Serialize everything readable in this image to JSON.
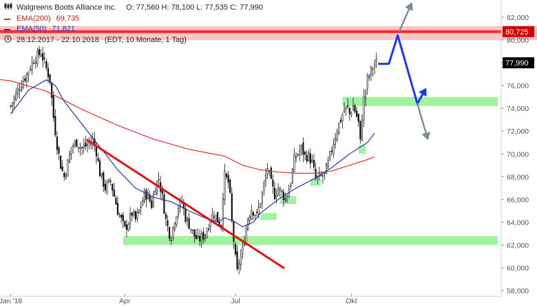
{
  "header": {
    "title": "Walgreens Boots Alliance Inc.",
    "ohlc": "O: 77,560  H: 78,100  L: 77,535  C: 77,990",
    "ema200_label": "EMA(200)",
    "ema200_value": "69,735",
    "ema50_label": "EMA(50)",
    "ema50_value": "71,821",
    "period": "28.12.2017 - 22.10.2018",
    "period_info": "(EDT, 10 Monate, 1 Tag)"
  },
  "colors": {
    "ema200": "#e03030",
    "ema50": "#2233aa",
    "candle": "#111111",
    "trendline": "#e81010",
    "resistance_band": "#ff2a2a",
    "support_zone": "#90f090",
    "projection": "#1a35ff",
    "alt_arrow": "#7a8a96",
    "last_price_bg": "#000000",
    "resistance_label_bg": "#d40000"
  },
  "chart_data": {
    "type": "candlestick",
    "ylim": [
      57.5,
      83.5
    ],
    "yticks": [
      58,
      60,
      62,
      64,
      66,
      68,
      70,
      72,
      74,
      76,
      78,
      80,
      82
    ],
    "ytick_labels": [
      "58,000",
      "60,000",
      "62,000",
      "64,000",
      "66,000",
      "68,000",
      "70,000",
      "72,000",
      "74,000",
      "76,000",
      "78,000",
      "80,000",
      "82,000"
    ],
    "xticks": [
      {
        "label": "Jan '18",
        "day": 0
      },
      {
        "label": "Apr",
        "day": 64
      },
      {
        "label": "Jul",
        "day": 126
      },
      {
        "label": "Okt",
        "day": 191
      }
    ],
    "close_path": [
      [
        0,
        74.2
      ],
      [
        4,
        75.6
      ],
      [
        9,
        77.0
      ],
      [
        13,
        78.3
      ],
      [
        17,
        78.9
      ],
      [
        20,
        77.5
      ],
      [
        22,
        76.5
      ],
      [
        24,
        73.2
      ],
      [
        26,
        70.8
      ],
      [
        28,
        69.0
      ],
      [
        30,
        68.0
      ],
      [
        32,
        69.2
      ],
      [
        34,
        70.6
      ],
      [
        37,
        71.0
      ],
      [
        40,
        70.5
      ],
      [
        43,
        70.8
      ],
      [
        46,
        71.2
      ],
      [
        48,
        70.2
      ],
      [
        50,
        68.3
      ],
      [
        53,
        67.0
      ],
      [
        56,
        67.6
      ],
      [
        58,
        66.3
      ],
      [
        60,
        65.0
      ],
      [
        62,
        64.2
      ],
      [
        64,
        63.4
      ],
      [
        66,
        64.0
      ],
      [
        68,
        64.8
      ],
      [
        70,
        64.2
      ],
      [
        73,
        65.4
      ],
      [
        75,
        66.5
      ],
      [
        77,
        66.3
      ],
      [
        79,
        65.5
      ],
      [
        81,
        67.2
      ],
      [
        83,
        67.8
      ],
      [
        85,
        66.2
      ],
      [
        87,
        64.2
      ],
      [
        89,
        63.0
      ],
      [
        90,
        62.8
      ],
      [
        92,
        64.3
      ],
      [
        94,
        65.4
      ],
      [
        96,
        65.8
      ],
      [
        98,
        64.4
      ],
      [
        100,
        63.8
      ],
      [
        103,
        62.8
      ],
      [
        105,
        62.4
      ],
      [
        108,
        62.8
      ],
      [
        110,
        63.3
      ],
      [
        112,
        64.3
      ],
      [
        114,
        64.8
      ],
      [
        116,
        64.2
      ],
      [
        118,
        63.8
      ],
      [
        119,
        66.5
      ],
      [
        120,
        68.1
      ],
      [
        122,
        67.5
      ],
      [
        123,
        66.2
      ],
      [
        124,
        64.0
      ],
      [
        126,
        60.8
      ],
      [
        127,
        59.6
      ],
      [
        128,
        60.5
      ],
      [
        130,
        61.5
      ],
      [
        132,
        63.5
      ],
      [
        133,
        64.4
      ],
      [
        135,
        65.2
      ],
      [
        138,
        64.6
      ],
      [
        141,
        66.5
      ],
      [
        144,
        68.8
      ],
      [
        146,
        67.4
      ],
      [
        148,
        66.4
      ],
      [
        150,
        67.0
      ],
      [
        152,
        66.6
      ],
      [
        154,
        66.0
      ],
      [
        157,
        67.5
      ],
      [
        159,
        69.5
      ],
      [
        161,
        70.0
      ],
      [
        163,
        70.5
      ],
      [
        165,
        69.8
      ],
      [
        167,
        69.8
      ],
      [
        169,
        69.2
      ],
      [
        171,
        67.8
      ],
      [
        173,
        67.9
      ],
      [
        176,
        68.2
      ],
      [
        178,
        69.2
      ],
      [
        181,
        71.0
      ],
      [
        183,
        72.2
      ],
      [
        185,
        73.0
      ],
      [
        187,
        73.9
      ],
      [
        189,
        74.0
      ],
      [
        190,
        73.5
      ],
      [
        192,
        74.2
      ],
      [
        194,
        73.3
      ],
      [
        195,
        72.7
      ],
      [
        196,
        71.0
      ],
      [
        197,
        73.3
      ],
      [
        198,
        74.8
      ],
      [
        200,
        76.5
      ],
      [
        202,
        77.3
      ],
      [
        204,
        77.9
      ],
      [
        205,
        78.0
      ]
    ],
    "ema200": [
      [
        -10,
        76.6
      ],
      [
        0,
        76.4
      ],
      [
        20,
        75.5
      ],
      [
        40,
        73.9
      ],
      [
        60,
        72.5
      ],
      [
        80,
        71.3
      ],
      [
        100,
        70.4
      ],
      [
        110,
        70.1
      ],
      [
        120,
        69.8
      ],
      [
        130,
        69.0
      ],
      [
        140,
        68.6
      ],
      [
        150,
        68.4
      ],
      [
        160,
        68.3
      ],
      [
        170,
        68.3
      ],
      [
        180,
        68.5
      ],
      [
        190,
        69.0
      ],
      [
        200,
        69.5
      ],
      [
        204,
        69.73
      ]
    ],
    "ema50": [
      [
        0,
        73.5
      ],
      [
        10,
        75.6
      ],
      [
        20,
        76.5
      ],
      [
        25,
        76.0
      ],
      [
        30,
        74.6
      ],
      [
        40,
        72.6
      ],
      [
        50,
        70.6
      ],
      [
        60,
        68.6
      ],
      [
        70,
        67.0
      ],
      [
        80,
        66.2
      ],
      [
        90,
        65.8
      ],
      [
        100,
        65.0
      ],
      [
        110,
        64.3
      ],
      [
        116,
        64.0
      ],
      [
        120,
        64.4
      ],
      [
        126,
        64.0
      ],
      [
        130,
        63.6
      ],
      [
        136,
        64.0
      ],
      [
        140,
        64.8
      ],
      [
        150,
        66.0
      ],
      [
        160,
        67.0
      ],
      [
        170,
        67.8
      ],
      [
        180,
        68.8
      ],
      [
        190,
        70.0
      ],
      [
        200,
        71.0
      ],
      [
        204,
        71.82
      ]
    ],
    "trendline": [
      [
        43,
        71.2
      ],
      [
        153,
        60.0
      ]
    ],
    "support_zones": [
      {
        "x0": 63,
        "x1": 273,
        "y0": 62.0,
        "y1": 62.8
      },
      {
        "x0": 186,
        "x1": 273,
        "y0": 74.2,
        "y1": 75.0
      },
      {
        "x0": 195,
        "x1": 199,
        "y0": 70.0,
        "y1": 70.8
      },
      {
        "x0": 168,
        "x1": 174,
        "y0": 67.2,
        "y1": 67.8
      },
      {
        "x0": 151,
        "x1": 160,
        "y0": 65.6,
        "y1": 66.3
      },
      {
        "x0": 140,
        "x1": 149,
        "y0": 64.2,
        "y1": 64.8
      }
    ],
    "resistance_line": 80.725,
    "resistance_band": [
      80.0,
      81.2
    ],
    "projection": [
      [
        206,
        77.9
      ],
      [
        212,
        77.9
      ],
      [
        217,
        80.4
      ],
      [
        228,
        74.4
      ],
      [
        232,
        75.6
      ]
    ],
    "projection_arrows": [
      {
        "from": [
          228,
          74.4
        ],
        "to": [
          233,
          75.8
        ],
        "color": "blue"
      },
      {
        "from": [
          218,
          80.8
        ],
        "to": [
          225,
          83.3
        ],
        "color": "gray"
      },
      {
        "from": [
          228,
          74.4
        ],
        "to": [
          234,
          71.2
        ],
        "color": "gray"
      }
    ],
    "last_close": 77.99,
    "last_close_label": "77,990",
    "resistance_label": "80,725"
  }
}
